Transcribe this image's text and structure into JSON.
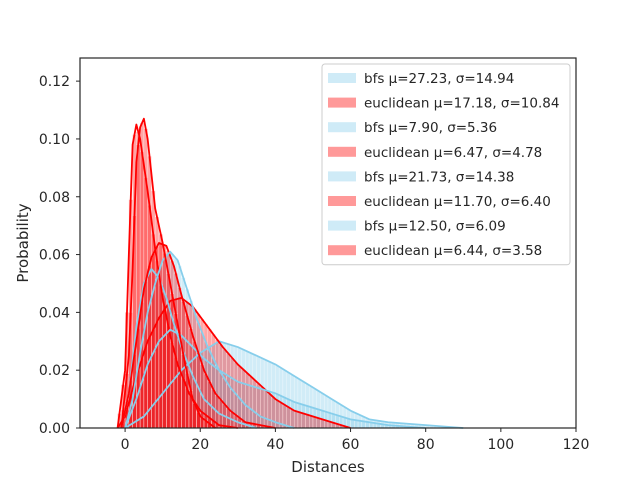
{
  "chart_data": {
    "type": "area",
    "title": "",
    "xlabel": "Distances",
    "ylabel": "Probability",
    "xlim": [
      -12,
      120
    ],
    "ylim": [
      0,
      0.128
    ],
    "xticks": [
      0,
      20,
      40,
      60,
      80,
      100,
      120
    ],
    "yticks": [
      0.0,
      0.02,
      0.04,
      0.06,
      0.08,
      0.1,
      0.12
    ],
    "ytick_labels": [
      "0.00",
      "0.02",
      "0.04",
      "0.06",
      "0.08",
      "0.10",
      "0.12"
    ],
    "grid": false,
    "legend_position": "top-right",
    "colors": {
      "bfs": "#87ceeb",
      "euclidean": "#ff0000"
    },
    "series": [
      {
        "name": "bfs μ=27.23, σ=14.94",
        "kind": "bfs",
        "x": [
          0,
          5,
          10,
          15,
          20,
          25,
          30,
          35,
          40,
          45,
          50,
          55,
          60,
          65,
          70,
          80,
          90
        ],
        "y": [
          0.0,
          0.004,
          0.012,
          0.02,
          0.026,
          0.03,
          0.028,
          0.025,
          0.022,
          0.018,
          0.014,
          0.01,
          0.006,
          0.003,
          0.002,
          0.001,
          0.0
        ]
      },
      {
        "name": "euclidean μ=17.18, σ=10.84",
        "kind": "euclidean",
        "x": [
          -2,
          0,
          3,
          6,
          9,
          12,
          15,
          18,
          22,
          26,
          30,
          35,
          40,
          45,
          55,
          60
        ],
        "y": [
          0.0,
          0.004,
          0.018,
          0.03,
          0.038,
          0.044,
          0.045,
          0.042,
          0.035,
          0.028,
          0.022,
          0.016,
          0.01,
          0.006,
          0.002,
          0.0
        ]
      },
      {
        "name": "bfs μ=7.90, σ=5.36",
        "kind": "bfs",
        "x": [
          -1,
          1,
          3,
          5,
          7,
          9,
          11,
          13,
          15,
          18,
          21,
          25,
          30,
          35
        ],
        "y": [
          0.0,
          0.012,
          0.035,
          0.05,
          0.055,
          0.052,
          0.045,
          0.036,
          0.028,
          0.018,
          0.01,
          0.005,
          0.002,
          0.0
        ]
      },
      {
        "name": "euclidean μ=6.47, σ=4.78",
        "kind": "euclidean",
        "x": [
          -2,
          0,
          1,
          2,
          3,
          4,
          6,
          8,
          10,
          12,
          14,
          17,
          20,
          25,
          30
        ],
        "y": [
          0.0,
          0.02,
          0.06,
          0.098,
          0.105,
          0.1,
          0.082,
          0.062,
          0.045,
          0.032,
          0.022,
          0.012,
          0.006,
          0.001,
          0.0
        ]
      },
      {
        "name": "bfs μ=21.73, σ=14.38",
        "kind": "bfs",
        "x": [
          0,
          3,
          6,
          9,
          12,
          15,
          18,
          21,
          25,
          30,
          35,
          40,
          45,
          50,
          55,
          60,
          70,
          80
        ],
        "y": [
          0.0,
          0.01,
          0.022,
          0.03,
          0.034,
          0.032,
          0.028,
          0.024,
          0.02,
          0.016,
          0.014,
          0.012,
          0.009,
          0.007,
          0.005,
          0.003,
          0.001,
          0.0
        ]
      },
      {
        "name": "euclidean μ=11.70, σ=6.40",
        "kind": "euclidean",
        "x": [
          -1,
          1,
          3,
          5,
          7,
          9,
          11,
          13,
          15,
          18,
          21,
          24,
          28,
          32,
          40
        ],
        "y": [
          0.0,
          0.012,
          0.03,
          0.048,
          0.059,
          0.064,
          0.063,
          0.056,
          0.046,
          0.032,
          0.02,
          0.012,
          0.006,
          0.002,
          0.0
        ]
      },
      {
        "name": "bfs μ=12.50, σ=6.09",
        "kind": "bfs",
        "x": [
          0,
          2,
          4,
          6,
          8,
          10,
          12,
          14,
          16,
          19,
          22,
          25,
          28,
          32,
          36,
          40,
          45
        ],
        "y": [
          0.0,
          0.01,
          0.026,
          0.04,
          0.05,
          0.058,
          0.061,
          0.058,
          0.05,
          0.038,
          0.028,
          0.02,
          0.014,
          0.008,
          0.004,
          0.002,
          0.0
        ]
      },
      {
        "name": "euclidean μ=6.44, σ=3.58",
        "kind": "euclidean",
        "x": [
          -1,
          1,
          2,
          3,
          4,
          5,
          6,
          7,
          8,
          9,
          10,
          12,
          14,
          16,
          18,
          20,
          24
        ],
        "y": [
          0.0,
          0.025,
          0.055,
          0.092,
          0.104,
          0.107,
          0.1,
          0.088,
          0.076,
          0.07,
          0.064,
          0.05,
          0.036,
          0.022,
          0.01,
          0.004,
          0.0
        ]
      }
    ]
  }
}
